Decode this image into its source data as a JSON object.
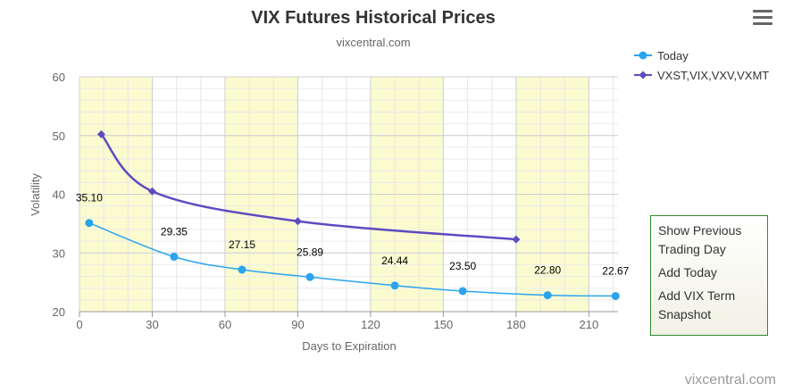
{
  "chart_data": {
    "type": "line",
    "title": "VIX Futures Historical Prices",
    "subtitle": "vixcentral.com",
    "xlabel": "Days to Expiration",
    "ylabel": "Volatility",
    "xlim": [
      0,
      222
    ],
    "ylim": [
      20,
      60
    ],
    "xticks": [
      0,
      30,
      60,
      90,
      120,
      150,
      180,
      210
    ],
    "yticks": [
      20,
      30,
      40,
      50,
      60
    ],
    "legend_position": "top-right",
    "series": [
      {
        "name": "Today",
        "color": "#2aa4ee",
        "marker": "circle",
        "x": [
          4,
          39,
          67,
          95,
          130,
          158,
          193,
          221
        ],
        "y": [
          35.1,
          29.35,
          27.15,
          25.89,
          24.44,
          23.5,
          22.8,
          22.67
        ],
        "labels": [
          "35.10",
          "29.35",
          "27.15",
          "25.89",
          "24.44",
          "23.50",
          "22.80",
          "22.67"
        ]
      },
      {
        "name": "VXST,VIX,VXV,VXMT",
        "color": "#5e4bc0",
        "marker": "diamond",
        "x": [
          9,
          30,
          90,
          180
        ],
        "y": [
          50.2,
          40.5,
          35.4,
          32.3
        ]
      }
    ]
  },
  "menu": {
    "icon": "hamburger-menu-icon"
  },
  "side_panel": {
    "show_previous": "Show Previous Trading Day",
    "add_today": "Add Today",
    "add_vix_term": "Add VIX Term Snapshot"
  },
  "credit": "vixcentral.com"
}
